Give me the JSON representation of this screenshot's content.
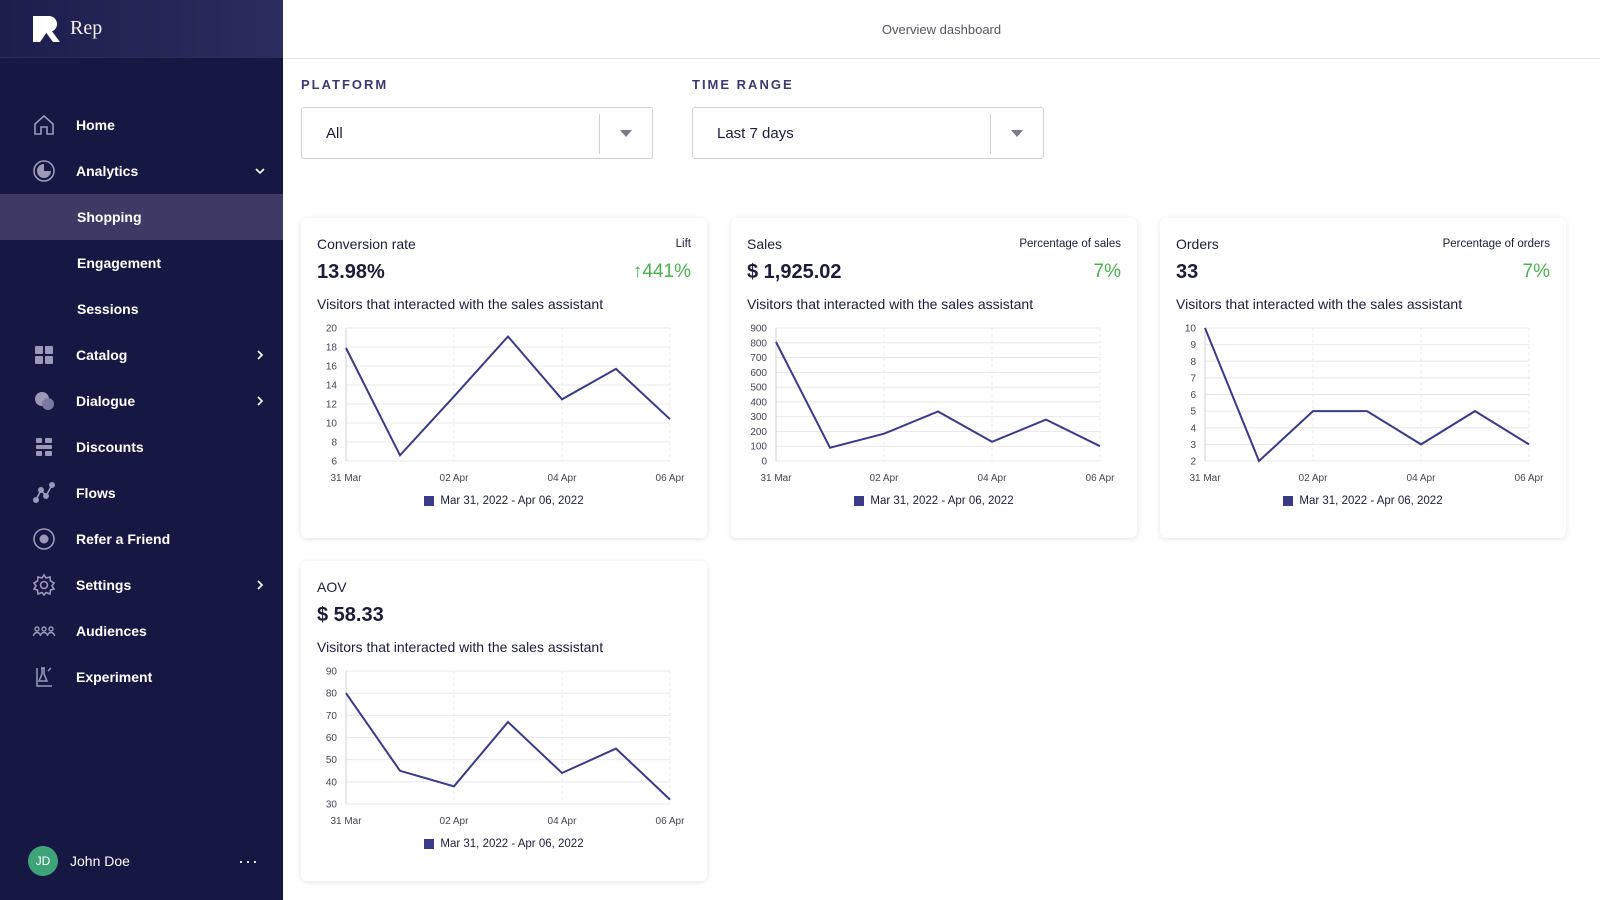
{
  "app": {
    "name": "Rep"
  },
  "header": {
    "title": "Overview dashboard"
  },
  "sidebar": {
    "items": [
      {
        "label": "Home",
        "icon": "home-icon"
      },
      {
        "label": "Analytics",
        "icon": "analytics-icon",
        "expanded": true
      },
      {
        "label": "Shopping",
        "sub": true,
        "active": true
      },
      {
        "label": "Engagement",
        "sub": true
      },
      {
        "label": "Sessions",
        "sub": true
      },
      {
        "label": "Catalog",
        "icon": "catalog-icon"
      },
      {
        "label": "Dialogue",
        "icon": "dialogue-icon"
      },
      {
        "label": "Discounts",
        "icon": "discounts-icon"
      },
      {
        "label": "Flows",
        "icon": "flows-icon"
      },
      {
        "label": "Refer a Friend",
        "icon": "refer-icon"
      },
      {
        "label": "Settings",
        "icon": "settings-icon"
      },
      {
        "label": "Audiences",
        "icon": "audiences-icon"
      },
      {
        "label": "Experiment",
        "icon": "experiment-icon"
      }
    ],
    "user": {
      "initials": "JD",
      "name": "John Doe",
      "more": "···"
    }
  },
  "filters": {
    "platform": {
      "label": "PLATFORM",
      "value": "All"
    },
    "time_range": {
      "label": "TIME RANGE",
      "value": "Last 7 days"
    }
  },
  "colors": {
    "sidebar_bg": "#171744",
    "line": "#3a3a88",
    "positive": "#4caf50"
  },
  "cards": [
    {
      "title": "Conversion rate",
      "right_label": "Lift",
      "value": "13.98%",
      "change": "↑441%",
      "subtitle": "Visitors that interacted with the sales assistant",
      "legend": "Mar 31, 2022 - Apr 06, 2022"
    },
    {
      "title": "Sales",
      "right_label": "Percentage of sales",
      "value": "$ 1,925.02",
      "change": "7%",
      "subtitle": "Visitors that interacted with the sales assistant",
      "legend": "Mar 31, 2022 - Apr 06, 2022"
    },
    {
      "title": "Orders",
      "right_label": "Percentage of orders",
      "value": "33",
      "change": "7%",
      "subtitle": "Visitors that interacted with the sales assistant",
      "legend": "Mar 31, 2022 - Apr 06, 2022"
    },
    {
      "title": "AOV",
      "right_label": "",
      "value": "$ 58.33",
      "change": "",
      "subtitle": "Visitors that interacted with the sales assistant",
      "legend": "Mar 31, 2022 - Apr 06, 2022"
    }
  ],
  "chart_data": [
    {
      "type": "line",
      "x": [
        "31 Mar",
        "01 Apr",
        "02 Apr",
        "03 Apr",
        "04 Apr",
        "05 Apr",
        "06 Apr"
      ],
      "xticks": [
        "31 Mar",
        "02 Apr",
        "04 Apr",
        "06 Apr"
      ],
      "yticks": [
        6,
        8,
        10,
        12,
        14,
        16,
        18,
        20
      ],
      "ylim": [
        6,
        20
      ],
      "series": [
        {
          "name": "Mar 31, 2022 - Apr 06, 2022",
          "values": [
            17.9,
            6.6,
            12.8,
            19.1,
            12.5,
            15.7,
            10.4
          ]
        }
      ]
    },
    {
      "type": "line",
      "x": [
        "31 Mar",
        "01 Apr",
        "02 Apr",
        "03 Apr",
        "04 Apr",
        "05 Apr",
        "06 Apr"
      ],
      "xticks": [
        "31 Mar",
        "02 Apr",
        "04 Apr",
        "06 Apr"
      ],
      "yticks": [
        0,
        100,
        200,
        300,
        400,
        500,
        600,
        700,
        800,
        900
      ],
      "ylim": [
        0,
        900
      ],
      "series": [
        {
          "name": "Mar 31, 2022 - Apr 06, 2022",
          "values": [
            805,
            90,
            185,
            335,
            130,
            280,
            100
          ]
        }
      ]
    },
    {
      "type": "line",
      "x": [
        "31 Mar",
        "01 Apr",
        "02 Apr",
        "03 Apr",
        "04 Apr",
        "05 Apr",
        "06 Apr"
      ],
      "xticks": [
        "31 Mar",
        "02 Apr",
        "04 Apr",
        "06 Apr"
      ],
      "yticks": [
        2,
        3,
        4,
        5,
        6,
        7,
        8,
        9,
        10
      ],
      "ylim": [
        2,
        10
      ],
      "series": [
        {
          "name": "Mar 31, 2022 - Apr 06, 2022",
          "values": [
            10,
            2,
            5,
            5,
            3,
            5,
            3
          ]
        }
      ]
    },
    {
      "type": "line",
      "x": [
        "31 Mar",
        "01 Apr",
        "02 Apr",
        "03 Apr",
        "04 Apr",
        "05 Apr",
        "06 Apr"
      ],
      "xticks": [
        "31 Mar",
        "02 Apr",
        "04 Apr",
        "06 Apr"
      ],
      "yticks": [
        30,
        40,
        50,
        60,
        70,
        80,
        90
      ],
      "ylim": [
        30,
        90
      ],
      "series": [
        {
          "name": "Mar 31, 2022 - Apr 06, 2022",
          "values": [
            80,
            45,
            38,
            67,
            44,
            55,
            32
          ]
        }
      ]
    }
  ]
}
